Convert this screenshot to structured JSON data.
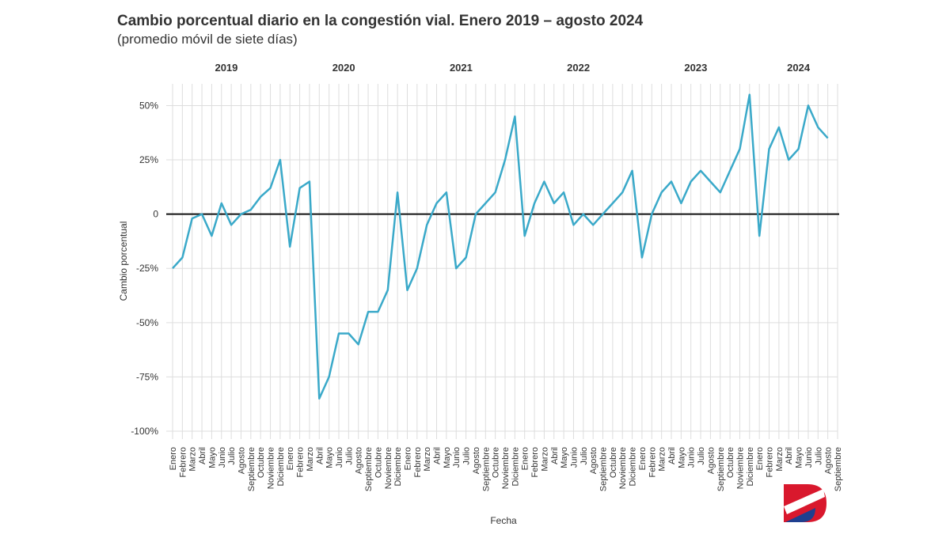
{
  "chart_data": {
    "type": "line",
    "title": "Cambio porcentual diario en la congestión vial. Enero 2019 – agosto 2024",
    "subtitle": "(promedio móvil de siete días)",
    "y_label": "Cambio porcentual",
    "x_label": "Fecha",
    "year_labels": [
      "2019",
      "2020",
      "2021",
      "2022",
      "2023",
      "2024"
    ],
    "categories": [
      "Enero",
      "Febrero",
      "Marzo",
      "Abril",
      "Mayo",
      "Junio",
      "Julio",
      "Agosto",
      "Septiembre",
      "Octubre",
      "Noviembre",
      "Diciembre",
      "Enero",
      "Febrero",
      "Marzo",
      "Abril",
      "Mayo",
      "Junio",
      "Julio",
      "Agosto",
      "Septiembre",
      "Octubre",
      "Noviembre",
      "Diciembre",
      "Enero",
      "Febrero",
      "Marzo",
      "Abril",
      "Mayo",
      "Junio",
      "Julio",
      "Agosto",
      "Septiembre",
      "Octubre",
      "Noviembre",
      "Diciembre",
      "Enero",
      "Febrero",
      "Marzo",
      "Abril",
      "Mayo",
      "Junio",
      "Julio",
      "Agosto",
      "Septiembre",
      "Octubre",
      "Noviembre",
      "Diciembre",
      "Enero",
      "Febrero",
      "Marzo",
      "Abril",
      "Mayo",
      "Junio",
      "Julio",
      "Agosto",
      "Septiembre",
      "Octubre",
      "Noviembre",
      "Diciembre",
      "Enero",
      "Febrero",
      "Marzo",
      "Abril",
      "Mayo",
      "Junio",
      "Julio",
      "Agosto",
      "Septiembre"
    ],
    "series": [
      {
        "name": "Cambio porcentual",
        "color": "#3aa9c9",
        "values": [
          -25,
          -20,
          -2,
          0,
          -10,
          5,
          -5,
          0,
          2,
          8,
          12,
          25,
          -15,
          12,
          15,
          -85,
          -75,
          -55,
          -55,
          -60,
          -45,
          -45,
          -35,
          10,
          -35,
          -25,
          -5,
          5,
          10,
          -25,
          -20,
          0,
          5,
          10,
          25,
          45,
          -10,
          5,
          15,
          5,
          10,
          -5,
          0,
          -5,
          0,
          5,
          10,
          20,
          -20,
          0,
          10,
          15,
          5,
          15,
          20,
          15,
          10,
          20,
          30,
          55,
          -10,
          30,
          40,
          25,
          30,
          50,
          40,
          35,
          null
        ]
      }
    ],
    "ylim": [
      -100,
      60
    ],
    "yticks": [
      {
        "value": -100,
        "label": "-100%"
      },
      {
        "value": -75,
        "label": "-75%"
      },
      {
        "value": -50,
        "label": "-50%"
      },
      {
        "value": -25,
        "label": "-25%"
      },
      0,
      {
        "value": 25,
        "label": "25%"
      },
      {
        "value": 50,
        "label": "50%"
      }
    ],
    "grid": true
  }
}
